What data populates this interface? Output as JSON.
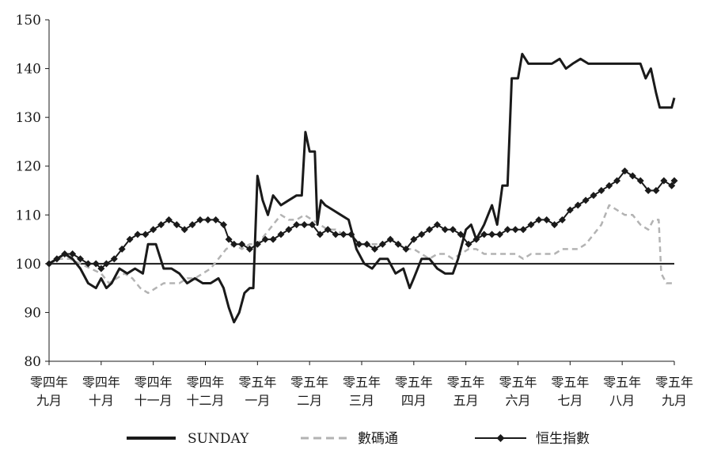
{
  "chart_data": {
    "type": "line",
    "title": "",
    "xlabel": "",
    "ylabel": "",
    "ylim": [
      80,
      150
    ],
    "yticks": [
      80,
      90,
      100,
      110,
      120,
      130,
      140,
      150
    ],
    "baseline": 100,
    "grid": false,
    "legend_position": "bottom",
    "x_categories": [
      {
        "line1": "零四年",
        "line2": "九月"
      },
      {
        "line1": "零四年",
        "line2": "十月"
      },
      {
        "line1": "零四年",
        "line2": "十一月"
      },
      {
        "line1": "零四年",
        "line2": "十二月"
      },
      {
        "line1": "零五年",
        "line2": "一月"
      },
      {
        "line1": "零五年",
        "line2": "二月"
      },
      {
        "line1": "零五年",
        "line2": "三月"
      },
      {
        "line1": "零五年",
        "line2": "四月"
      },
      {
        "line1": "零五年",
        "line2": "五月"
      },
      {
        "line1": "零五年",
        "line2": "六月"
      },
      {
        "line1": "零五年",
        "line2": "七月"
      },
      {
        "line1": "零五年",
        "line2": "八月"
      },
      {
        "line1": "零五年",
        "line2": "九月"
      }
    ],
    "series": [
      {
        "name": "SUNDAY",
        "style": "solid",
        "color": "#1a1a1a",
        "points": [
          [
            0,
            100
          ],
          [
            0.15,
            101
          ],
          [
            0.3,
            102
          ],
          [
            0.45,
            101
          ],
          [
            0.6,
            99
          ],
          [
            0.75,
            96
          ],
          [
            0.9,
            95
          ],
          [
            1.0,
            97
          ],
          [
            1.1,
            95
          ],
          [
            1.2,
            96
          ],
          [
            1.35,
            99
          ],
          [
            1.5,
            98
          ],
          [
            1.65,
            99
          ],
          [
            1.8,
            98
          ],
          [
            1.9,
            104
          ],
          [
            2.05,
            104
          ],
          [
            2.2,
            99
          ],
          [
            2.35,
            99
          ],
          [
            2.5,
            98
          ],
          [
            2.65,
            96
          ],
          [
            2.8,
            97
          ],
          [
            2.95,
            96
          ],
          [
            3.1,
            96
          ],
          [
            3.25,
            97
          ],
          [
            3.35,
            95
          ],
          [
            3.45,
            91
          ],
          [
            3.55,
            88
          ],
          [
            3.65,
            90
          ],
          [
            3.75,
            94
          ],
          [
            3.85,
            95
          ],
          [
            3.92,
            95
          ],
          [
            4.0,
            118
          ],
          [
            4.1,
            113
          ],
          [
            4.2,
            110
          ],
          [
            4.3,
            114
          ],
          [
            4.45,
            112
          ],
          [
            4.6,
            113
          ],
          [
            4.75,
            114
          ],
          [
            4.85,
            114
          ],
          [
            4.92,
            127
          ],
          [
            5.0,
            123
          ],
          [
            5.1,
            123
          ],
          [
            5.15,
            108
          ],
          [
            5.22,
            113
          ],
          [
            5.3,
            112
          ],
          [
            5.45,
            111
          ],
          [
            5.6,
            110
          ],
          [
            5.75,
            109
          ],
          [
            5.9,
            103
          ],
          [
            6.05,
            100
          ],
          [
            6.2,
            99
          ],
          [
            6.35,
            101
          ],
          [
            6.5,
            101
          ],
          [
            6.65,
            98
          ],
          [
            6.8,
            99
          ],
          [
            6.92,
            95
          ],
          [
            7.0,
            97
          ],
          [
            7.15,
            101
          ],
          [
            7.3,
            101
          ],
          [
            7.45,
            99
          ],
          [
            7.6,
            98
          ],
          [
            7.75,
            98
          ],
          [
            7.85,
            101
          ],
          [
            8.0,
            107
          ],
          [
            8.1,
            108
          ],
          [
            8.2,
            105
          ],
          [
            8.35,
            108
          ],
          [
            8.5,
            112
          ],
          [
            8.6,
            108
          ],
          [
            8.7,
            116
          ],
          [
            8.8,
            116
          ],
          [
            8.88,
            138
          ],
          [
            9.0,
            138
          ],
          [
            9.08,
            143
          ],
          [
            9.2,
            141
          ],
          [
            9.35,
            141
          ],
          [
            9.5,
            141
          ],
          [
            9.65,
            141
          ],
          [
            9.8,
            142
          ],
          [
            9.92,
            140
          ],
          [
            10.05,
            141
          ],
          [
            10.2,
            142
          ],
          [
            10.35,
            141
          ],
          [
            10.5,
            141
          ],
          [
            10.65,
            141
          ],
          [
            10.8,
            141
          ],
          [
            10.95,
            141
          ],
          [
            11.1,
            141
          ],
          [
            11.25,
            141
          ],
          [
            11.35,
            141
          ],
          [
            11.45,
            138
          ],
          [
            11.55,
            140
          ],
          [
            11.65,
            135
          ],
          [
            11.72,
            132
          ],
          [
            11.85,
            132
          ],
          [
            11.95,
            132
          ],
          [
            12.0,
            134
          ]
        ]
      },
      {
        "name": "數碼通",
        "style": "dashed",
        "color": "#b3b3b3",
        "points": [
          [
            0,
            100
          ],
          [
            0.2,
            101
          ],
          [
            0.4,
            101
          ],
          [
            0.6,
            100
          ],
          [
            0.8,
            99
          ],
          [
            1.0,
            98
          ],
          [
            1.15,
            96
          ],
          [
            1.3,
            97
          ],
          [
            1.45,
            98
          ],
          [
            1.6,
            97
          ],
          [
            1.75,
            95
          ],
          [
            1.9,
            94
          ],
          [
            2.05,
            95
          ],
          [
            2.2,
            96
          ],
          [
            2.35,
            96
          ],
          [
            2.5,
            96
          ],
          [
            2.65,
            97
          ],
          [
            2.8,
            97
          ],
          [
            2.95,
            98
          ],
          [
            3.1,
            99
          ],
          [
            3.25,
            101
          ],
          [
            3.4,
            103
          ],
          [
            3.55,
            104
          ],
          [
            3.7,
            103
          ],
          [
            3.85,
            104
          ],
          [
            4.0,
            104
          ],
          [
            4.15,
            106
          ],
          [
            4.3,
            108
          ],
          [
            4.45,
            110
          ],
          [
            4.6,
            109
          ],
          [
            4.75,
            109
          ],
          [
            4.9,
            110
          ],
          [
            5.05,
            109
          ],
          [
            5.2,
            108
          ],
          [
            5.35,
            107
          ],
          [
            5.5,
            107
          ],
          [
            5.65,
            106
          ],
          [
            5.8,
            106
          ],
          [
            5.95,
            104
          ],
          [
            6.1,
            104
          ],
          [
            6.25,
            104
          ],
          [
            6.4,
            104
          ],
          [
            6.55,
            105
          ],
          [
            6.7,
            104
          ],
          [
            6.85,
            103
          ],
          [
            7.0,
            103
          ],
          [
            7.15,
            102
          ],
          [
            7.3,
            101
          ],
          [
            7.45,
            102
          ],
          [
            7.6,
            102
          ],
          [
            7.75,
            101
          ],
          [
            7.9,
            102
          ],
          [
            8.05,
            103
          ],
          [
            8.2,
            103
          ],
          [
            8.35,
            102
          ],
          [
            8.5,
            102
          ],
          [
            8.65,
            102
          ],
          [
            8.8,
            102
          ],
          [
            8.95,
            102
          ],
          [
            9.1,
            101
          ],
          [
            9.25,
            102
          ],
          [
            9.4,
            102
          ],
          [
            9.55,
            102
          ],
          [
            9.7,
            102
          ],
          [
            9.85,
            103
          ],
          [
            10.0,
            103
          ],
          [
            10.15,
            103
          ],
          [
            10.3,
            104
          ],
          [
            10.45,
            106
          ],
          [
            10.6,
            108
          ],
          [
            10.75,
            112
          ],
          [
            10.9,
            111
          ],
          [
            11.05,
            110
          ],
          [
            11.2,
            110
          ],
          [
            11.35,
            108
          ],
          [
            11.5,
            107
          ],
          [
            11.6,
            109
          ],
          [
            11.7,
            109
          ],
          [
            11.75,
            98
          ],
          [
            11.85,
            96
          ],
          [
            11.95,
            96
          ],
          [
            12.0,
            96
          ]
        ]
      },
      {
        "name": "恒生指數",
        "style": "diamond",
        "color": "#1a1a1a",
        "points": [
          [
            0,
            100
          ],
          [
            0.15,
            101
          ],
          [
            0.3,
            102
          ],
          [
            0.45,
            102
          ],
          [
            0.6,
            101
          ],
          [
            0.75,
            100
          ],
          [
            0.9,
            100
          ],
          [
            1.0,
            99
          ],
          [
            1.1,
            100
          ],
          [
            1.25,
            101
          ],
          [
            1.4,
            103
          ],
          [
            1.55,
            105
          ],
          [
            1.7,
            106
          ],
          [
            1.85,
            106
          ],
          [
            2.0,
            107
          ],
          [
            2.15,
            108
          ],
          [
            2.3,
            109
          ],
          [
            2.45,
            108
          ],
          [
            2.6,
            107
          ],
          [
            2.75,
            108
          ],
          [
            2.9,
            109
          ],
          [
            3.05,
            109
          ],
          [
            3.2,
            109
          ],
          [
            3.35,
            108
          ],
          [
            3.45,
            105
          ],
          [
            3.55,
            104
          ],
          [
            3.7,
            104
          ],
          [
            3.85,
            103
          ],
          [
            4.0,
            104
          ],
          [
            4.15,
            105
          ],
          [
            4.3,
            105
          ],
          [
            4.45,
            106
          ],
          [
            4.6,
            107
          ],
          [
            4.75,
            108
          ],
          [
            4.9,
            108
          ],
          [
            5.05,
            108
          ],
          [
            5.2,
            106
          ],
          [
            5.35,
            107
          ],
          [
            5.5,
            106
          ],
          [
            5.65,
            106
          ],
          [
            5.8,
            106
          ],
          [
            5.95,
            104
          ],
          [
            6.1,
            104
          ],
          [
            6.25,
            103
          ],
          [
            6.4,
            104
          ],
          [
            6.55,
            105
          ],
          [
            6.7,
            104
          ],
          [
            6.85,
            103
          ],
          [
            7.0,
            105
          ],
          [
            7.15,
            106
          ],
          [
            7.3,
            107
          ],
          [
            7.45,
            108
          ],
          [
            7.6,
            107
          ],
          [
            7.75,
            107
          ],
          [
            7.9,
            106
          ],
          [
            8.05,
            104
          ],
          [
            8.2,
            105
          ],
          [
            8.35,
            106
          ],
          [
            8.5,
            106
          ],
          [
            8.65,
            106
          ],
          [
            8.8,
            107
          ],
          [
            8.95,
            107
          ],
          [
            9.1,
            107
          ],
          [
            9.25,
            108
          ],
          [
            9.4,
            109
          ],
          [
            9.55,
            109
          ],
          [
            9.7,
            108
          ],
          [
            9.85,
            109
          ],
          [
            10.0,
            111
          ],
          [
            10.15,
            112
          ],
          [
            10.3,
            113
          ],
          [
            10.45,
            114
          ],
          [
            10.6,
            115
          ],
          [
            10.75,
            116
          ],
          [
            10.9,
            117
          ],
          [
            11.05,
            119
          ],
          [
            11.2,
            118
          ],
          [
            11.35,
            117
          ],
          [
            11.5,
            115
          ],
          [
            11.65,
            115
          ],
          [
            11.8,
            117
          ],
          [
            11.95,
            116
          ],
          [
            12.0,
            117
          ]
        ]
      }
    ]
  }
}
